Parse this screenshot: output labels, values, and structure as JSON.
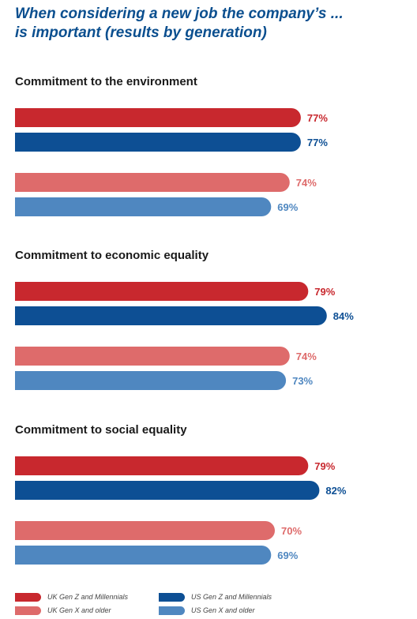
{
  "title": {
    "line1": "When considering a new job the company’s ...",
    "line2": "is important (results by generation)"
  },
  "colors": {
    "uk_genz": "#c8282e",
    "us_genz": "#0d4f94",
    "uk_genx": "#de6b6b",
    "us_genx": "#4f87c0"
  },
  "legend": {
    "uk_genz": "UK Gen Z and Millennials",
    "us_genz": "US Gen Z and Millennials",
    "uk_genx": "UK Gen X and older",
    "us_genx": "US Gen X and older"
  },
  "chart_data": {
    "type": "bar",
    "orientation": "horizontal",
    "title": "When considering a new job the company’s ... is important (results by generation)",
    "unit": "%",
    "categories": [
      "Commitment to the environment",
      "Commitment to economic equality",
      "Commitment to social equality"
    ],
    "series": [
      {
        "name": "UK Gen Z and Millennials",
        "values": [
          77,
          79,
          79
        ],
        "labels": [
          "77%",
          "79%",
          "79%"
        ]
      },
      {
        "name": "US Gen Z and Millennials",
        "values": [
          77,
          84,
          82
        ],
        "labels": [
          "77%",
          "84%",
          "82%"
        ]
      },
      {
        "name": "UK Gen X and older",
        "values": [
          74,
          74,
          70
        ],
        "labels": [
          "74%",
          "74%",
          "70%"
        ]
      },
      {
        "name": "US Gen X and older",
        "values": [
          69,
          73,
          69
        ],
        "labels": [
          "69%",
          "73%",
          "69%"
        ]
      }
    ],
    "legend_position": "bottom",
    "grid": false
  }
}
